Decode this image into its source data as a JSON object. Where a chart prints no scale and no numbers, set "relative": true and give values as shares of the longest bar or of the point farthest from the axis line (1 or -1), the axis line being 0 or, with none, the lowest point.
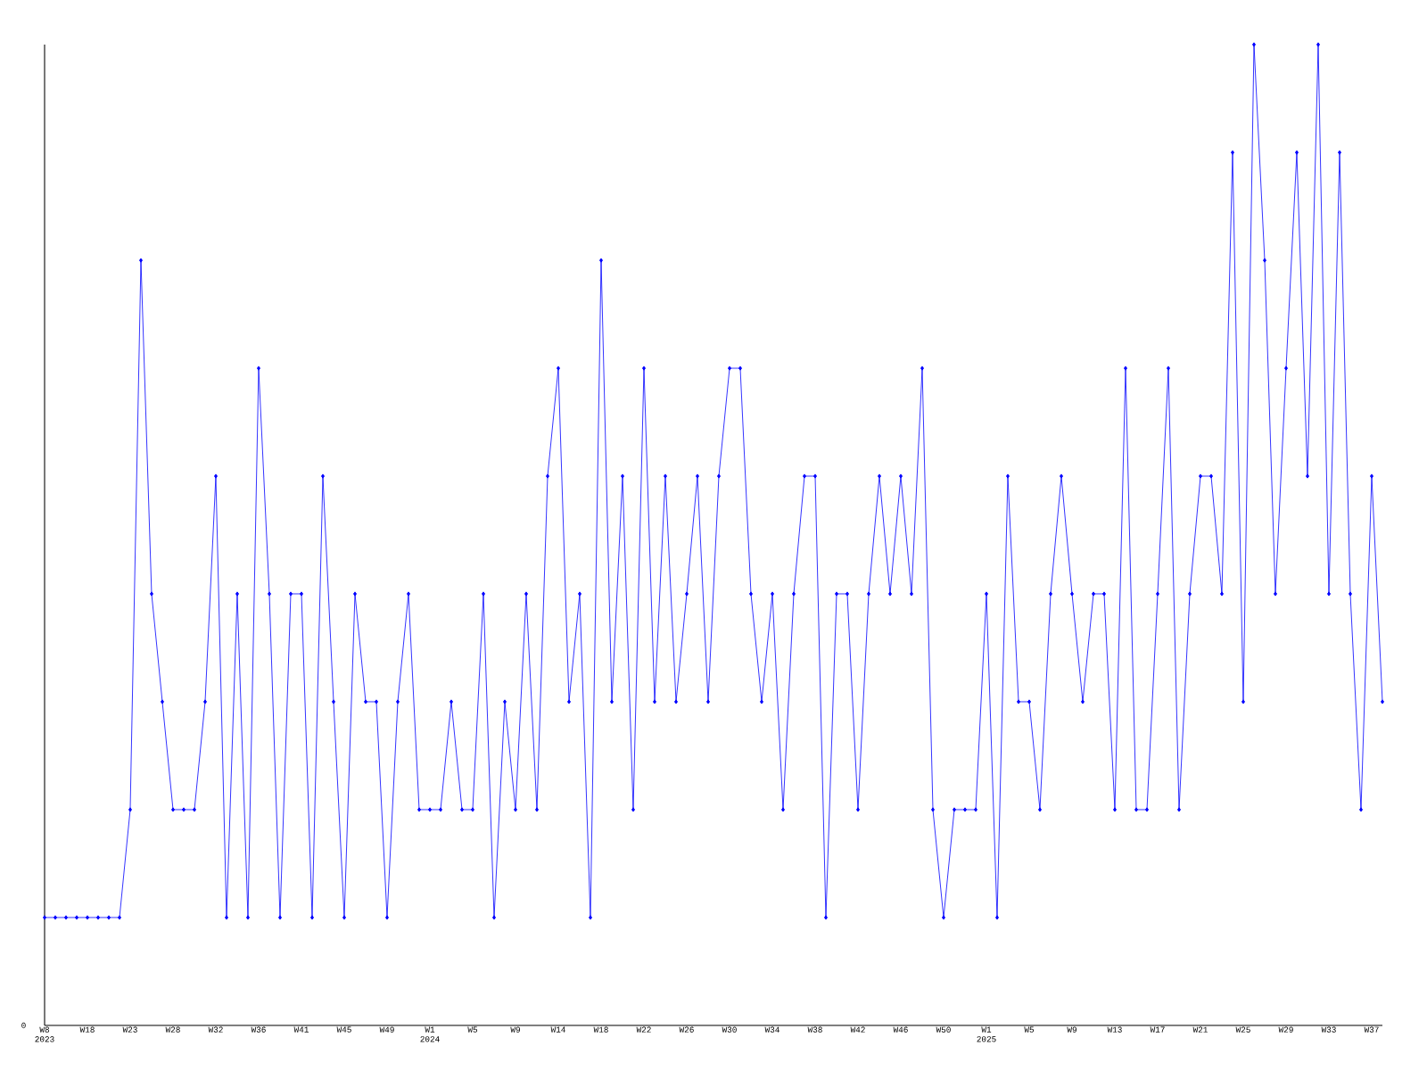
{
  "chart_data": {
    "type": "line",
    "relative": true,
    "color": "#0000ff",
    "marker": "diamond",
    "line_style": "solid",
    "annotations": [
      "0"
    ],
    "categories": [
      "W8 2023",
      null,
      null,
      null,
      "W18",
      null,
      null,
      null,
      "W23",
      null,
      null,
      null,
      "W28",
      null,
      null,
      null,
      "W32",
      null,
      null,
      null,
      "W36",
      null,
      null,
      null,
      "W41",
      null,
      null,
      null,
      "W45",
      null,
      null,
      null,
      "W49",
      null,
      null,
      null,
      "W1 2024",
      null,
      null,
      null,
      "W5",
      null,
      null,
      null,
      "W9",
      null,
      null,
      null,
      "W14",
      null,
      null,
      null,
      "W18",
      null,
      null,
      null,
      "W22",
      null,
      null,
      null,
      "W26",
      null,
      null,
      null,
      "W30",
      null,
      null,
      null,
      "W34",
      null,
      null,
      null,
      "W38",
      null,
      null,
      null,
      "W42",
      null,
      null,
      null,
      "W46",
      null,
      null,
      null,
      "W50",
      null,
      null,
      null,
      "W1 2025",
      null,
      null,
      null,
      "W5",
      null,
      null,
      null,
      "W9",
      null,
      null,
      null,
      "W13",
      null,
      null,
      null,
      "W17",
      null,
      null,
      null,
      "W21",
      null,
      null,
      null,
      "W25",
      null,
      null,
      null,
      "W29",
      null,
      null,
      null,
      "W33",
      null,
      null,
      null,
      "W37",
      null
    ],
    "values": [
      0.11,
      0.11,
      0.11,
      0.11,
      0.11,
      0.11,
      0.11,
      0.11,
      0.22,
      0.78,
      0.44,
      0.33,
      0.22,
      0.22,
      0.22,
      0.33,
      0.56,
      0.11,
      0.44,
      0.11,
      0.67,
      0.44,
      0.11,
      0.44,
      0.44,
      0.11,
      0.56,
      0.33,
      0.11,
      0.44,
      0.33,
      0.33,
      0.11,
      0.33,
      0.44,
      0.22,
      0.22,
      0.22,
      0.33,
      0.22,
      0.22,
      0.44,
      0.11,
      0.33,
      0.22,
      0.44,
      0.22,
      0.56,
      0.67,
      0.33,
      0.44,
      0.11,
      0.78,
      0.33,
      0.56,
      0.22,
      0.67,
      0.33,
      0.56,
      0.33,
      0.44,
      0.56,
      0.33,
      0.56,
      0.67,
      0.67,
      0.44,
      0.33,
      0.44,
      0.22,
      0.44,
      0.56,
      0.56,
      0.11,
      0.44,
      0.44,
      0.22,
      0.44,
      0.56,
      0.44,
      0.56,
      0.44,
      0.67,
      0.22,
      0.11,
      0.22,
      0.22,
      0.22,
      0.44,
      0.11,
      0.56,
      0.33,
      0.33,
      0.22,
      0.44,
      0.56,
      0.44,
      0.33,
      0.44,
      0.44,
      0.22,
      0.67,
      0.22,
      0.22,
      0.44,
      0.67,
      0.22,
      0.44,
      0.56,
      0.56,
      0.44,
      0.89,
      0.33,
      1,
      0.78,
      0.44,
      0.67,
      0.89,
      0.56,
      1,
      0.44,
      0.89,
      0.44,
      0.22,
      0.56,
      0.33
    ]
  }
}
